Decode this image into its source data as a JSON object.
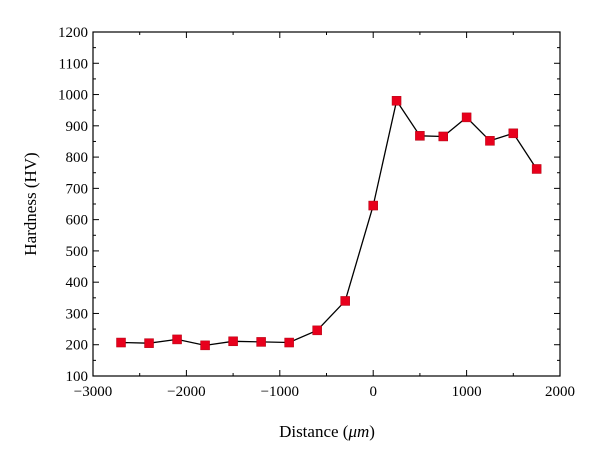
{
  "chart_data": {
    "type": "line",
    "title": "",
    "xlabel": "Distance (",
    "xlabel_unit": "μm",
    "xlabel_close": ")",
    "ylabel": "Hardness (HV)",
    "xlim": [
      -3000,
      2000
    ],
    "ylim": [
      100,
      1200
    ],
    "x_ticks": [
      -3000,
      -2000,
      -1000,
      0,
      1000,
      2000
    ],
    "x_tick_labels": [
      "−3000",
      "−2000",
      "−1000",
      "0",
      "1000",
      "2000"
    ],
    "y_ticks": [
      100,
      200,
      300,
      400,
      500,
      600,
      700,
      800,
      900,
      1000,
      1100,
      1200
    ],
    "y_tick_labels": [
      "100",
      "200",
      "300",
      "400",
      "500",
      "600",
      "700",
      "800",
      "900",
      "1000",
      "1100",
      "1200"
    ],
    "grid": false,
    "series": [
      {
        "x": [
          -2700,
          -2400,
          -2100,
          -1800,
          -1500,
          -1200,
          -900,
          -600,
          -300,
          0,
          250,
          500,
          750,
          1000,
          1250,
          1500,
          1750
        ],
        "y": [
          207,
          205,
          217,
          198,
          211,
          209,
          207,
          246,
          340,
          645,
          980,
          868,
          866,
          927,
          852,
          876,
          762
        ],
        "marker": "square",
        "marker_color": "#e8001c",
        "line_color": "#000000"
      }
    ]
  }
}
